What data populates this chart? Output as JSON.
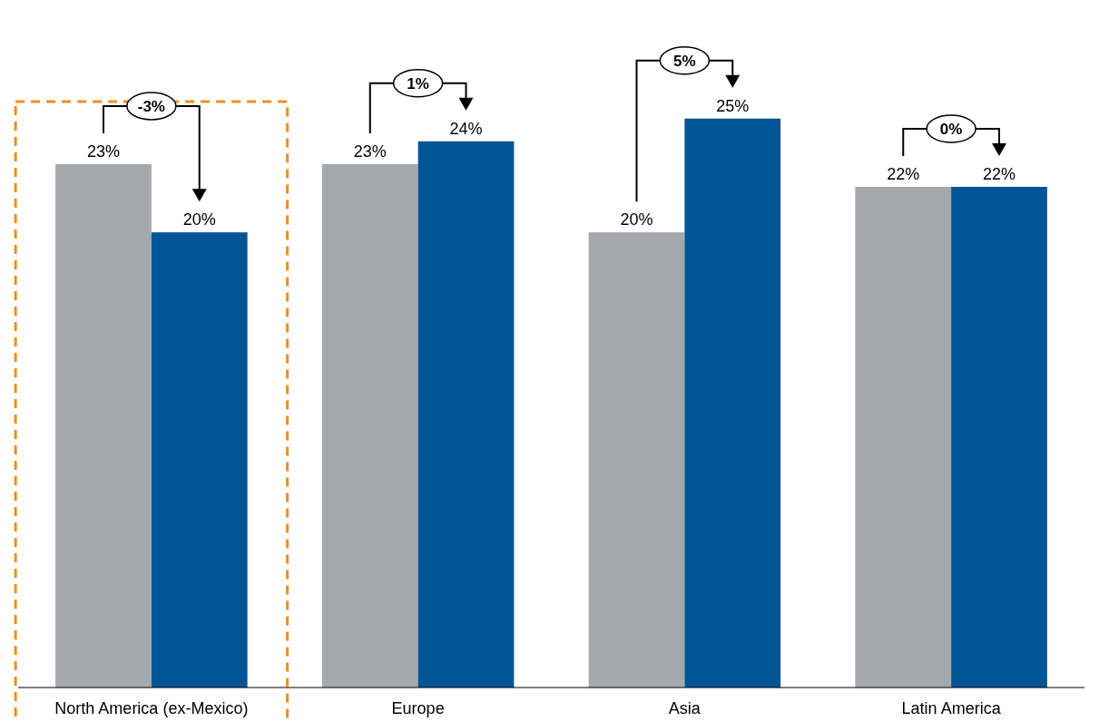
{
  "chart_data": {
    "type": "bar",
    "categories": [
      "North America (ex-Mexico)",
      "Europe",
      "Asia",
      "Latin America"
    ],
    "series": [
      {
        "color": "#a5a8ac",
        "values": [
          23,
          23,
          20,
          22
        ],
        "value_labels": [
          "23%",
          "23%",
          "20%",
          "22%"
        ]
      },
      {
        "color": "#005596",
        "values": [
          20,
          24,
          25,
          22
        ],
        "value_labels": [
          "20%",
          "24%",
          "25%",
          "22%"
        ]
      }
    ],
    "tick_labels": "x",
    "annotations": [
      "-3%",
      "1%",
      "5%",
      "0%"
    ]
  }
}
